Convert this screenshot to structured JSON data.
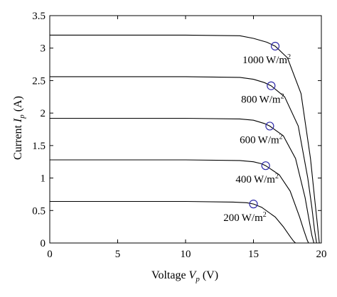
{
  "chart_data": {
    "type": "line",
    "xlabel": "Voltage V_p (V)",
    "ylabel": "Current I_p (A)",
    "xlabel_parts": {
      "prefix": "Voltage ",
      "var": "V",
      "sub": "p",
      "suffix": " (V)"
    },
    "ylabel_parts": {
      "prefix": "Current ",
      "var": "I",
      "sub": "p",
      "suffix": " (A)"
    },
    "xlim": [
      0,
      20
    ],
    "ylim": [
      0,
      3.5
    ],
    "xticks": [
      0,
      5,
      10,
      15,
      20
    ],
    "xtick_labels": [
      "0",
      "5",
      "10",
      "15",
      "20"
    ],
    "yticks": [
      0,
      0.5,
      1,
      1.5,
      2,
      2.5,
      3,
      3.5
    ],
    "ytick_labels": [
      "0",
      "0.5",
      "1",
      "1.5",
      "2",
      "2.5",
      "3",
      "3.5"
    ],
    "grid": false,
    "legend": "none",
    "marker_color": "#2e2aa8",
    "line_color": "#000000",
    "series": [
      {
        "label_value": "1000",
        "label_unit": "W/m",
        "label_exp": "2",
        "x": [
          0,
          10,
          14,
          15,
          16,
          16.6,
          17.5,
          18.5,
          19.2,
          19.5,
          19.7,
          19.85
        ],
        "y": [
          3.2,
          3.2,
          3.19,
          3.15,
          3.09,
          3.03,
          2.85,
          2.3,
          1.3,
          0.7,
          0.3,
          0
        ],
        "mpp": [
          16.6,
          3.03
        ]
      },
      {
        "label_value": "800",
        "label_unit": "W/m",
        "label_exp": "2",
        "x": [
          0,
          10,
          14,
          15,
          15.8,
          16.3,
          17.3,
          18.3,
          19.0,
          19.3,
          19.5,
          19.65
        ],
        "y": [
          2.56,
          2.56,
          2.55,
          2.52,
          2.47,
          2.42,
          2.25,
          1.8,
          1.0,
          0.55,
          0.2,
          0
        ],
        "mpp": [
          16.3,
          2.42
        ]
      },
      {
        "label_value": "600",
        "label_unit": "W/m",
        "label_exp": "2",
        "x": [
          0,
          10,
          14,
          15,
          15.8,
          16.2,
          17.2,
          18.1,
          18.8,
          19.1,
          19.3,
          19.45
        ],
        "y": [
          1.92,
          1.92,
          1.91,
          1.89,
          1.84,
          1.8,
          1.65,
          1.3,
          0.7,
          0.35,
          0.12,
          0
        ],
        "mpp": [
          16.2,
          1.8
        ]
      },
      {
        "label_value": "400",
        "label_unit": "W/m",
        "label_exp": "2",
        "x": [
          0,
          10,
          14,
          15,
          15.6,
          15.9,
          16.9,
          17.7,
          18.4,
          18.7,
          18.95,
          19.05
        ],
        "y": [
          1.28,
          1.28,
          1.27,
          1.25,
          1.22,
          1.19,
          1.05,
          0.8,
          0.4,
          0.2,
          0.05,
          0
        ],
        "mpp": [
          15.9,
          1.19
        ]
      },
      {
        "label_value": "200",
        "label_unit": "W/m",
        "label_exp": "2",
        "x": [
          0,
          10,
          13.5,
          14.5,
          15.0,
          15.6,
          16.6,
          17.2,
          17.7,
          17.95,
          18.1
        ],
        "y": [
          0.64,
          0.64,
          0.63,
          0.62,
          0.6,
          0.55,
          0.4,
          0.25,
          0.1,
          0.03,
          0
        ],
        "mpp": [
          15.0,
          0.6
        ]
      }
    ]
  }
}
